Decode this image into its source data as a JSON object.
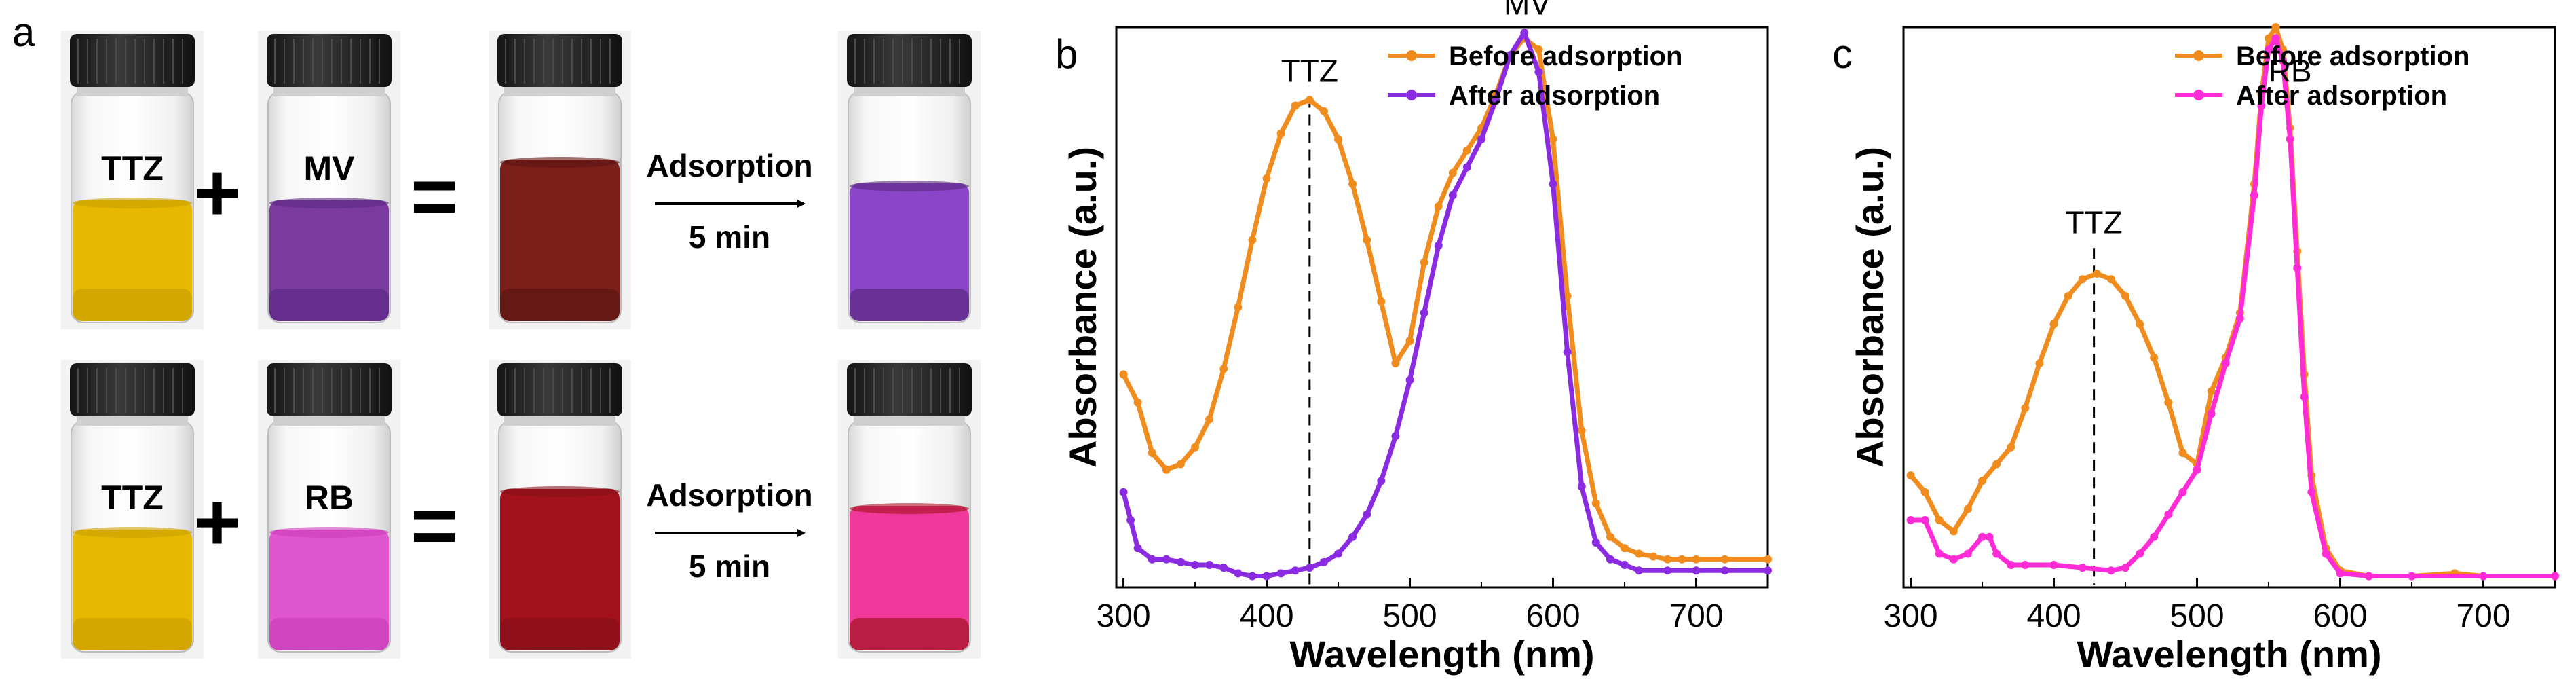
{
  "panel_a": {
    "letter": "a",
    "rows": [
      {
        "vials": [
          {
            "label": "TTZ",
            "liquid": "#e6b800",
            "liquid_dark": "#caa000"
          },
          {
            "label": "MV",
            "liquid": "#7a3aa0",
            "liquid_dark": "#5d2884"
          },
          {
            "label": "",
            "liquid": "#7a1f1a",
            "liquid_dark": "#5e1512"
          },
          {
            "label": "",
            "liquid": "#8a45c8",
            "liquid_dark": "#5b2a80"
          }
        ],
        "plus": "+",
        "equals": "=",
        "arrow_top": "Adsorption",
        "arrow_bottom": "5 min"
      },
      {
        "vials": [
          {
            "label": "TTZ",
            "liquid": "#e6b800",
            "liquid_dark": "#caa000"
          },
          {
            "label": "RB",
            "liquid": "#e055d0",
            "liquid_dark": "#c93eb8"
          },
          {
            "label": "",
            "liquid": "#a3121c",
            "liquid_dark": "#86101a"
          },
          {
            "label": "",
            "liquid": "#f0389a",
            "liquid_dark": "#a3121c"
          }
        ],
        "plus": "+",
        "equals": "=",
        "arrow_top": "Adsorption",
        "arrow_bottom": "5 min"
      }
    ]
  },
  "chart_data": [
    {
      "letter": "b",
      "type": "line",
      "title": "",
      "xlabel": "Wavelength (nm)",
      "ylabel": "Absorbance (a.u.)",
      "xlim": [
        295,
        750
      ],
      "ylim": [
        0,
        1
      ],
      "xticks": [
        300,
        400,
        500,
        600,
        700
      ],
      "legend": "top-right",
      "annotations": [
        {
          "text": "TTZ",
          "x": 430,
          "y": 0.9,
          "dashed_line_x": 430
        },
        {
          "text": "MV",
          "x": 582,
          "y": 1.02
        }
      ],
      "series": [
        {
          "name": "Before  adsorption",
          "color": "#f08c1e",
          "x": [
            300,
            310,
            320,
            330,
            340,
            350,
            360,
            370,
            380,
            390,
            400,
            410,
            420,
            430,
            440,
            450,
            460,
            470,
            480,
            490,
            500,
            510,
            520,
            530,
            540,
            550,
            560,
            570,
            580,
            590,
            600,
            610,
            620,
            630,
            640,
            650,
            660,
            670,
            680,
            690,
            700,
            720,
            750
          ],
          "y": [
            0.38,
            0.33,
            0.24,
            0.21,
            0.22,
            0.25,
            0.3,
            0.39,
            0.5,
            0.62,
            0.73,
            0.81,
            0.86,
            0.87,
            0.85,
            0.8,
            0.72,
            0.62,
            0.51,
            0.4,
            0.44,
            0.58,
            0.68,
            0.74,
            0.78,
            0.82,
            0.88,
            0.95,
            0.98,
            0.96,
            0.8,
            0.52,
            0.28,
            0.15,
            0.09,
            0.07,
            0.06,
            0.055,
            0.05,
            0.05,
            0.05,
            0.05,
            0.05
          ]
        },
        {
          "name": "After adsorption",
          "color": "#8a2be2",
          "x": [
            300,
            305,
            310,
            320,
            330,
            340,
            350,
            360,
            370,
            380,
            390,
            400,
            410,
            420,
            430,
            440,
            450,
            460,
            470,
            480,
            490,
            500,
            510,
            520,
            530,
            540,
            550,
            560,
            570,
            580,
            590,
            600,
            610,
            620,
            630,
            640,
            650,
            660,
            680,
            700,
            720,
            750
          ],
          "y": [
            0.17,
            0.12,
            0.07,
            0.05,
            0.05,
            0.045,
            0.04,
            0.04,
            0.035,
            0.025,
            0.02,
            0.02,
            0.025,
            0.03,
            0.035,
            0.045,
            0.06,
            0.09,
            0.13,
            0.19,
            0.27,
            0.37,
            0.49,
            0.61,
            0.7,
            0.75,
            0.8,
            0.87,
            0.95,
            0.99,
            0.92,
            0.72,
            0.42,
            0.18,
            0.08,
            0.05,
            0.04,
            0.03,
            0.03,
            0.03,
            0.03,
            0.03
          ]
        }
      ]
    },
    {
      "letter": "c",
      "type": "line",
      "title": "",
      "xlabel": "Wavelength (nm)",
      "ylabel": "Absorbance (a.u.)",
      "xlim": [
        295,
        750
      ],
      "ylim": [
        0,
        1
      ],
      "xticks": [
        300,
        400,
        500,
        600,
        700
      ],
      "legend": "top-right",
      "annotations": [
        {
          "text": "TTZ",
          "x": 428,
          "y": 0.63,
          "dashed_line_x": 428
        },
        {
          "text": "RB",
          "x": 565,
          "y": 0.9
        }
      ],
      "series": [
        {
          "name": "Before  adsorption",
          "color": "#f08c1e",
          "x": [
            300,
            310,
            320,
            330,
            340,
            350,
            360,
            370,
            380,
            390,
            400,
            410,
            420,
            430,
            440,
            450,
            460,
            470,
            480,
            490,
            500,
            510,
            520,
            530,
            540,
            545,
            550,
            555,
            560,
            565,
            570,
            575,
            580,
            590,
            600,
            620,
            650,
            680,
            700,
            750
          ],
          "y": [
            0.2,
            0.17,
            0.12,
            0.1,
            0.14,
            0.19,
            0.22,
            0.25,
            0.32,
            0.4,
            0.47,
            0.52,
            0.55,
            0.56,
            0.55,
            0.52,
            0.47,
            0.41,
            0.33,
            0.24,
            0.22,
            0.35,
            0.41,
            0.49,
            0.72,
            0.88,
            0.98,
            1.0,
            0.96,
            0.82,
            0.6,
            0.38,
            0.2,
            0.07,
            0.03,
            0.02,
            0.02,
            0.025,
            0.02,
            0.02
          ]
        },
        {
          "name": "After adsorption",
          "color": "#ff2bd6",
          "x": [
            300,
            310,
            320,
            330,
            340,
            350,
            355,
            360,
            370,
            380,
            400,
            420,
            440,
            450,
            460,
            470,
            480,
            490,
            500,
            510,
            520,
            530,
            540,
            545,
            550,
            555,
            560,
            565,
            570,
            575,
            580,
            590,
            600,
            620,
            650,
            700,
            750
          ],
          "y": [
            0.12,
            0.12,
            0.06,
            0.05,
            0.06,
            0.09,
            0.09,
            0.06,
            0.04,
            0.04,
            0.04,
            0.035,
            0.03,
            0.035,
            0.06,
            0.09,
            0.13,
            0.17,
            0.21,
            0.31,
            0.4,
            0.48,
            0.7,
            0.86,
            0.96,
            0.98,
            0.94,
            0.8,
            0.57,
            0.34,
            0.17,
            0.06,
            0.025,
            0.02,
            0.02,
            0.02,
            0.02
          ]
        }
      ]
    }
  ]
}
